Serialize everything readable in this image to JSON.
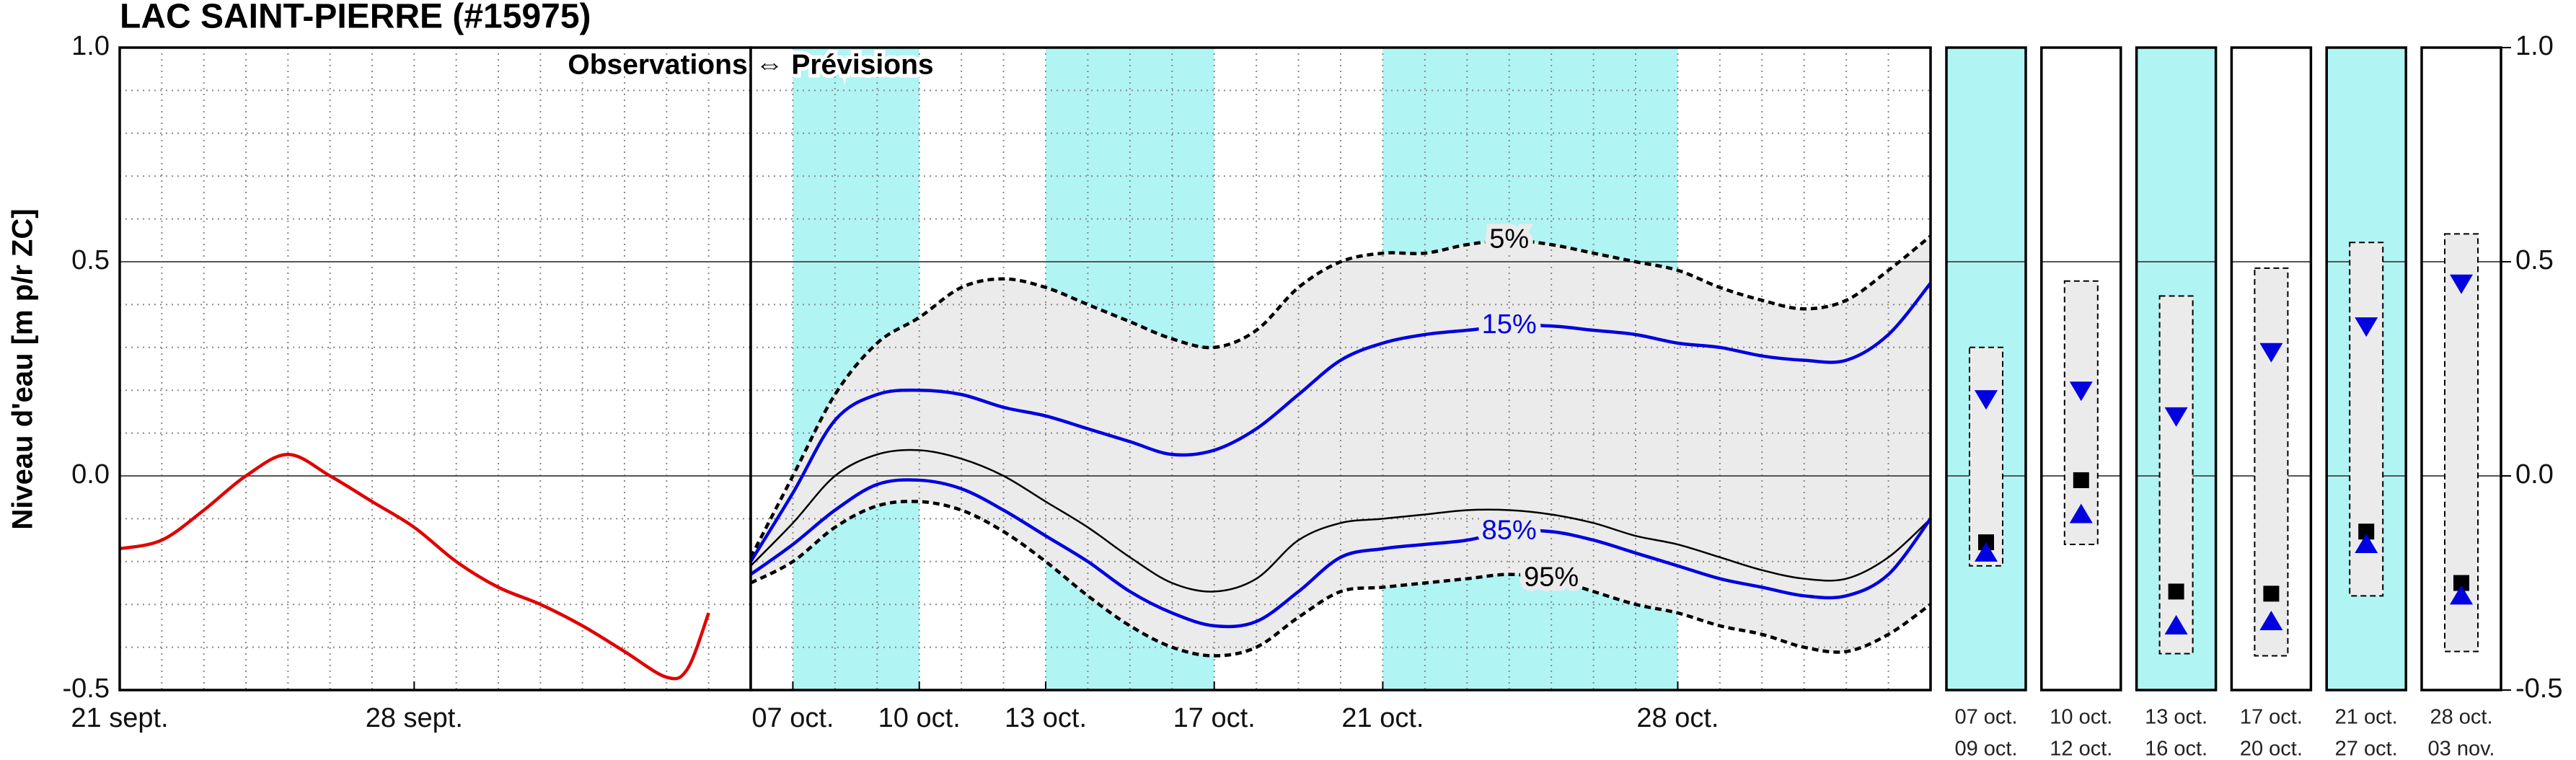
{
  "chart_data": [
    {
      "type": "line",
      "title": "LAC SAINT-PIERRE (#15975)",
      "ylabel": "Niveau d'eau [m p/r ZC]",
      "xlim": [
        0,
        15
      ],
      "xticks": [
        {
          "value": 0,
          "label": "21 sept."
        },
        {
          "value": 7,
          "label": "28 sept."
        }
      ],
      "xminorticks": [
        1,
        2,
        3,
        4,
        5,
        6,
        7,
        8,
        9,
        10,
        11,
        12,
        13,
        14
      ],
      "ylim": [
        -0.5,
        1
      ],
      "yticks": [
        -0.5,
        {
          "value": 0,
          "label": "0.0"
        },
        0.5,
        {
          "value": 1,
          "label": "1.0"
        }
      ],
      "yminorticks": [
        -0.4,
        -0.3,
        -0.2,
        -0.1,
        0.1,
        0.2,
        0.3,
        0.4,
        0.6,
        0.7,
        0.8,
        0.9
      ],
      "grid": true,
      "series": [
        {
          "color": "#e00000",
          "x": [
            0,
            1,
            2,
            3,
            4,
            5,
            6,
            7,
            8,
            9,
            10,
            11,
            12,
            13,
            13.5,
            14
          ],
          "values": [
            -0.17,
            -0.15,
            -0.08,
            0.0,
            0.05,
            0.0,
            -0.06,
            -0.12,
            -0.2,
            -0.26,
            -0.3,
            -0.35,
            -0.41,
            -0.47,
            -0.45,
            -0.32
          ]
        }
      ]
    },
    {
      "type": "line",
      "annotation": "Observations ⇔ Prévisions",
      "xlim": [
        0,
        28
      ],
      "xticks": [
        {
          "value": 1,
          "label": "07 oct."
        },
        {
          "value": 4,
          "label": "10 oct."
        },
        {
          "value": 7,
          "label": "13 oct."
        },
        {
          "value": 11,
          "label": "17 oct."
        },
        {
          "value": 15,
          "label": "21 oct."
        },
        {
          "value": 22,
          "label": "28 oct."
        }
      ],
      "xminorticks": [
        1,
        2,
        3,
        4,
        5,
        6,
        7,
        8,
        9,
        10,
        11,
        12,
        13,
        14,
        15,
        16,
        17,
        18,
        19,
        20,
        21,
        22,
        23,
        24,
        25,
        26,
        27
      ],
      "ylim": [
        -0.5,
        1
      ],
      "yticks": [
        -0.5,
        {
          "value": 0,
          "label": "0.0"
        },
        0.5,
        {
          "value": 1,
          "label": "1.0"
        }
      ],
      "yminorticks": [
        -0.4,
        -0.3,
        -0.2,
        -0.1,
        0.1,
        0.2,
        0.3,
        0.4,
        0.6,
        0.7,
        0.8,
        0.9
      ],
      "grid": true,
      "shaded_periods": [
        [
          1,
          4
        ],
        [
          7,
          11
        ],
        [
          15,
          22
        ]
      ],
      "shade_color": "#b0f4f4",
      "band_color": "#ebebeb",
      "series": [
        {
          "name": "5%",
          "color": "#000000",
          "dashed": true,
          "x": [
            0,
            1,
            2,
            3,
            4,
            5,
            6,
            7,
            8,
            9,
            10,
            11,
            12,
            13,
            14,
            15,
            16,
            17,
            18,
            19,
            20,
            21,
            22,
            23,
            24,
            25,
            26,
            27,
            28
          ],
          "values": [
            -0.19,
            0.0,
            0.19,
            0.31,
            0.37,
            0.44,
            0.46,
            0.44,
            0.4,
            0.36,
            0.32,
            0.3,
            0.34,
            0.44,
            0.5,
            0.52,
            0.52,
            0.54,
            0.55,
            0.54,
            0.52,
            0.5,
            0.48,
            0.44,
            0.41,
            0.39,
            0.41,
            0.48,
            0.56
          ]
        },
        {
          "name": "15%",
          "color": "#0000e0",
          "dashed": false,
          "x": [
            0,
            1,
            2,
            3,
            4,
            5,
            6,
            7,
            8,
            9,
            10,
            11,
            12,
            13,
            14,
            15,
            16,
            17,
            18,
            19,
            20,
            21,
            22,
            23,
            24,
            25,
            26,
            27,
            28
          ],
          "values": [
            -0.2,
            -0.04,
            0.13,
            0.19,
            0.2,
            0.19,
            0.16,
            0.14,
            0.11,
            0.08,
            0.05,
            0.06,
            0.11,
            0.19,
            0.27,
            0.31,
            0.33,
            0.34,
            0.35,
            0.35,
            0.34,
            0.33,
            0.31,
            0.3,
            0.28,
            0.27,
            0.27,
            0.33,
            0.45
          ]
        },
        {
          "color": "#000000",
          "dashed": false,
          "x": [
            0,
            1,
            2,
            3,
            4,
            5,
            6,
            7,
            8,
            9,
            10,
            11,
            12,
            13,
            14,
            15,
            16,
            17,
            18,
            19,
            20,
            21,
            22,
            23,
            24,
            25,
            26,
            27,
            28
          ],
          "values": [
            -0.21,
            -0.11,
            0.0,
            0.05,
            0.06,
            0.04,
            0.0,
            -0.06,
            -0.12,
            -0.19,
            -0.25,
            -0.27,
            -0.24,
            -0.15,
            -0.11,
            -0.1,
            -0.09,
            -0.08,
            -0.08,
            -0.09,
            -0.11,
            -0.14,
            -0.16,
            -0.19,
            -0.22,
            -0.24,
            -0.24,
            -0.19,
            -0.1
          ]
        },
        {
          "name": "85%",
          "color": "#0000e0",
          "dashed": false,
          "x": [
            0,
            1,
            2,
            3,
            4,
            5,
            6,
            7,
            8,
            9,
            10,
            11,
            12,
            13,
            14,
            15,
            16,
            17,
            18,
            19,
            20,
            21,
            22,
            23,
            24,
            25,
            26,
            27,
            28
          ],
          "values": [
            -0.23,
            -0.16,
            -0.08,
            -0.02,
            -0.01,
            -0.03,
            -0.08,
            -0.14,
            -0.2,
            -0.27,
            -0.32,
            -0.35,
            -0.34,
            -0.27,
            -0.19,
            -0.17,
            -0.16,
            -0.15,
            -0.13,
            -0.13,
            -0.15,
            -0.18,
            -0.21,
            -0.24,
            -0.26,
            -0.28,
            -0.28,
            -0.23,
            -0.1
          ]
        },
        {
          "name": "95%",
          "color": "#000000",
          "dashed": true,
          "x": [
            0,
            1,
            2,
            3,
            4,
            5,
            6,
            7,
            8,
            9,
            10,
            11,
            12,
            13,
            14,
            15,
            16,
            17,
            18,
            19,
            20,
            21,
            22,
            23,
            24,
            25,
            26,
            27,
            28
          ],
          "values": [
            -0.25,
            -0.2,
            -0.12,
            -0.07,
            -0.06,
            -0.08,
            -0.13,
            -0.2,
            -0.28,
            -0.35,
            -0.4,
            -0.42,
            -0.4,
            -0.33,
            -0.27,
            -0.26,
            -0.25,
            -0.24,
            -0.23,
            -0.24,
            -0.27,
            -0.3,
            -0.32,
            -0.35,
            -0.37,
            -0.4,
            -0.41,
            -0.37,
            -0.3
          ]
        }
      ]
    },
    {
      "type": "range_summary",
      "ylim": [
        -0.5,
        1
      ],
      "yticks": [
        -0.5,
        {
          "value": 0,
          "label": "0.0"
        },
        0.5,
        {
          "value": 1,
          "label": "1.0"
        }
      ],
      "shade_color": "#b0f4f4",
      "band_color": "#ebebeb",
      "median_color": "#000000",
      "quantile_color": "#0000e0",
      "panels": [
        {
          "start": "07 oct.",
          "end": "09 oct.",
          "shaded": true,
          "max": 0.3,
          "min": -0.21,
          "median": -0.155,
          "p15": 0.18,
          "p85": -0.18
        },
        {
          "start": "10 oct.",
          "end": "12 oct.",
          "shaded": false,
          "max": 0.455,
          "min": -0.16,
          "median": -0.01,
          "p15": 0.2,
          "p85": -0.09
        },
        {
          "start": "13 oct.",
          "end": "16 oct.",
          "shaded": true,
          "max": 0.42,
          "min": -0.415,
          "median": -0.27,
          "p15": 0.14,
          "p85": -0.35
        },
        {
          "start": "17 oct.",
          "end": "20 oct.",
          "shaded": false,
          "max": 0.485,
          "min": -0.42,
          "median": -0.275,
          "p15": 0.29,
          "p85": -0.34
        },
        {
          "start": "21 oct.",
          "end": "27 oct.",
          "shaded": true,
          "max": 0.545,
          "min": -0.28,
          "median": -0.13,
          "p15": 0.35,
          "p85": -0.16
        },
        {
          "start": "28 oct.",
          "end": "03 nov.",
          "shaded": false,
          "max": 0.565,
          "min": -0.41,
          "median": -0.25,
          "p15": 0.45,
          "p85": -0.28
        }
      ]
    }
  ]
}
